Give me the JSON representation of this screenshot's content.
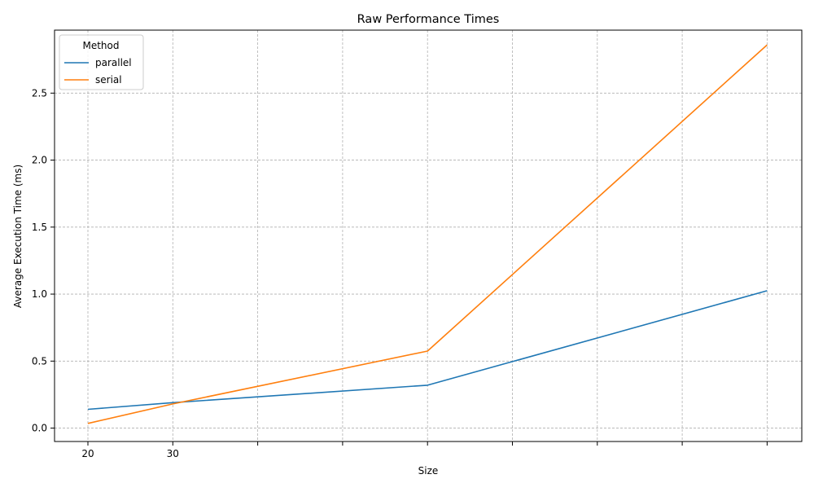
{
  "chart_data": {
    "type": "line",
    "title": "Raw Performance Times",
    "xlabel": "Size",
    "ylabel": "Average Execution Time (ms)",
    "x_tick_labels": [
      "20",
      "30",
      "",
      "",
      "",
      "",
      "",
      "",
      ""
    ],
    "y_ticks": [
      0.0,
      0.5,
      1.0,
      1.5,
      2.0,
      2.5
    ],
    "y_tick_labels": [
      "0.0",
      "0.5",
      "1.0",
      "1.5",
      "2.0",
      "2.5"
    ],
    "ylim": [
      -0.1,
      2.97
    ],
    "grid": true,
    "legend": {
      "title": "Method",
      "placement": "top-left"
    },
    "series": [
      {
        "name": "parallel",
        "color": "#1f77b4",
        "x": [
          0,
          1,
          4,
          8
        ],
        "values": [
          0.14,
          0.19,
          0.32,
          1.025
        ]
      },
      {
        "name": "serial",
        "color": "#ff7f0e",
        "x": [
          0,
          1,
          4,
          8
        ],
        "values": [
          0.035,
          0.18,
          0.575,
          2.86
        ]
      }
    ]
  }
}
